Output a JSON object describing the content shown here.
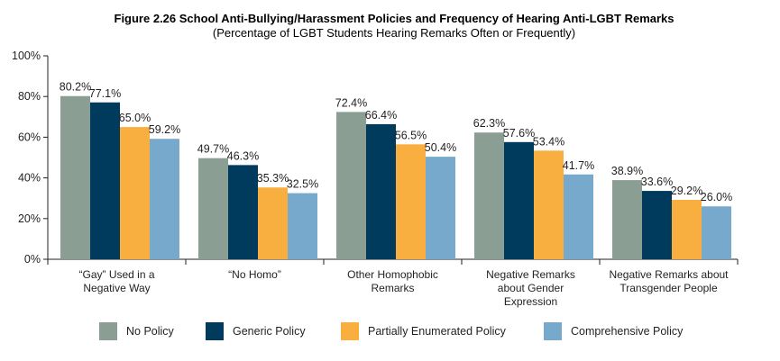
{
  "chart_data": {
    "type": "bar",
    "title": "Figure 2.26 School Anti-Bullying/Harassment Policies and Frequency of Hearing Anti-LGBT Remarks",
    "subtitle": "(Percentage of LGBT Students Hearing Remarks Often or Frequently)",
    "categories": [
      [
        "“Gay” Used in a",
        "Negative Way"
      ],
      [
        "“No Homo”"
      ],
      [
        "Other Homophobic",
        "Remarks"
      ],
      [
        "Negative Remarks",
        "about Gender",
        "Expression"
      ],
      [
        "Negative Remarks about",
        "Transgender People"
      ]
    ],
    "series": [
      {
        "name": "No Policy",
        "color": "#8a9e93",
        "values": [
          80.2,
          49.7,
          72.4,
          62.3,
          38.9
        ]
      },
      {
        "name": "Generic Policy",
        "color": "#003a5c",
        "values": [
          77.1,
          46.3,
          66.4,
          57.6,
          33.6
        ]
      },
      {
        "name": "Partially Enumerated Policy",
        "color": "#f9ae40",
        "values": [
          65.0,
          35.3,
          56.5,
          53.4,
          29.2
        ]
      },
      {
        "name": "Comprehensive Policy",
        "color": "#76a9cc",
        "values": [
          59.2,
          32.5,
          50.4,
          41.7,
          26.0
        ]
      }
    ],
    "ylim": [
      0,
      100
    ],
    "yticks": [
      "0%",
      "20%",
      "40%",
      "60%",
      "80%",
      "100%"
    ],
    "legend_position": "bottom",
    "grid": false
  }
}
